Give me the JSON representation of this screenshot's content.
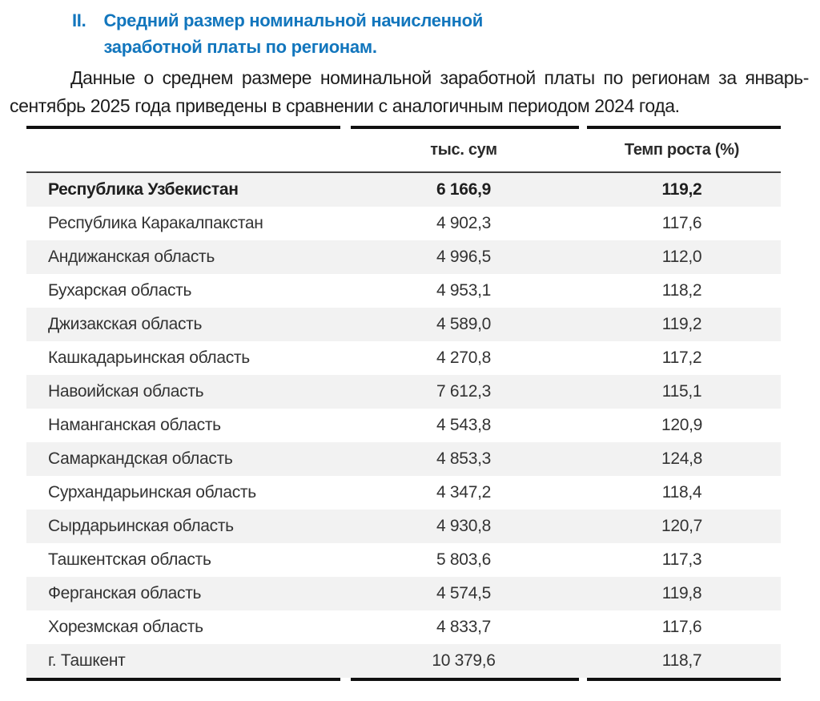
{
  "accent_color": "#1276BD",
  "stripe_color": "#f2f2f2",
  "border_color": "#101010",
  "heading": {
    "number": "II.",
    "text": "Средний размер номинальной начисленной заработной платы по регионам."
  },
  "intro": {
    "text": "Данные о среднем размере номинальной заработной платы по регионам за январь-сентябрь 2025 года приведены в сравнении с аналогичным периодом 2024 года."
  },
  "table": {
    "columns": [
      "",
      "тыс. сум",
      "Темп роста (%)"
    ],
    "rows": [
      {
        "region": "Республика Узбекистан",
        "value": "6 166,9",
        "growth": "119,2",
        "bold": true
      },
      {
        "region": "Республика Каракалпакстан",
        "value": "4 902,3",
        "growth": "117,6",
        "bold": false
      },
      {
        "region": "Андижанская область",
        "value": "4 996,5",
        "growth": "112,0",
        "bold": false
      },
      {
        "region": "Бухарская область",
        "value": "4 953,1",
        "growth": "118,2",
        "bold": false
      },
      {
        "region": "Джизакская область",
        "value": "4 589,0",
        "growth": "119,2",
        "bold": false
      },
      {
        "region": "Кашкадарьинская область",
        "value": "4 270,8",
        "growth": "117,2",
        "bold": false
      },
      {
        "region": "Навоийская область",
        "value": "7 612,3",
        "growth": "115,1",
        "bold": false
      },
      {
        "region": "Наманганская область",
        "value": "4 543,8",
        "growth": "120,9",
        "bold": false
      },
      {
        "region": "Самаркандская область",
        "value": "4 853,3",
        "growth": "124,8",
        "bold": false
      },
      {
        "region": "Сурхандарьинская область",
        "value": "4 347,2",
        "growth": "118,4",
        "bold": false
      },
      {
        "region": "Сырдарьинская область",
        "value": "4 930,8",
        "growth": "120,7",
        "bold": false
      },
      {
        "region": "Ташкентская область",
        "value": "5 803,6",
        "growth": "117,3",
        "bold": false
      },
      {
        "region": "Ферганская область",
        "value": "4 574,5",
        "growth": "119,8",
        "bold": false
      },
      {
        "region": "Хорезмская область",
        "value": "4 833,7",
        "growth": "117,6",
        "bold": false
      },
      {
        "region": "г. Ташкент",
        "value": "10 379,6",
        "growth": "118,7",
        "bold": false
      }
    ]
  }
}
